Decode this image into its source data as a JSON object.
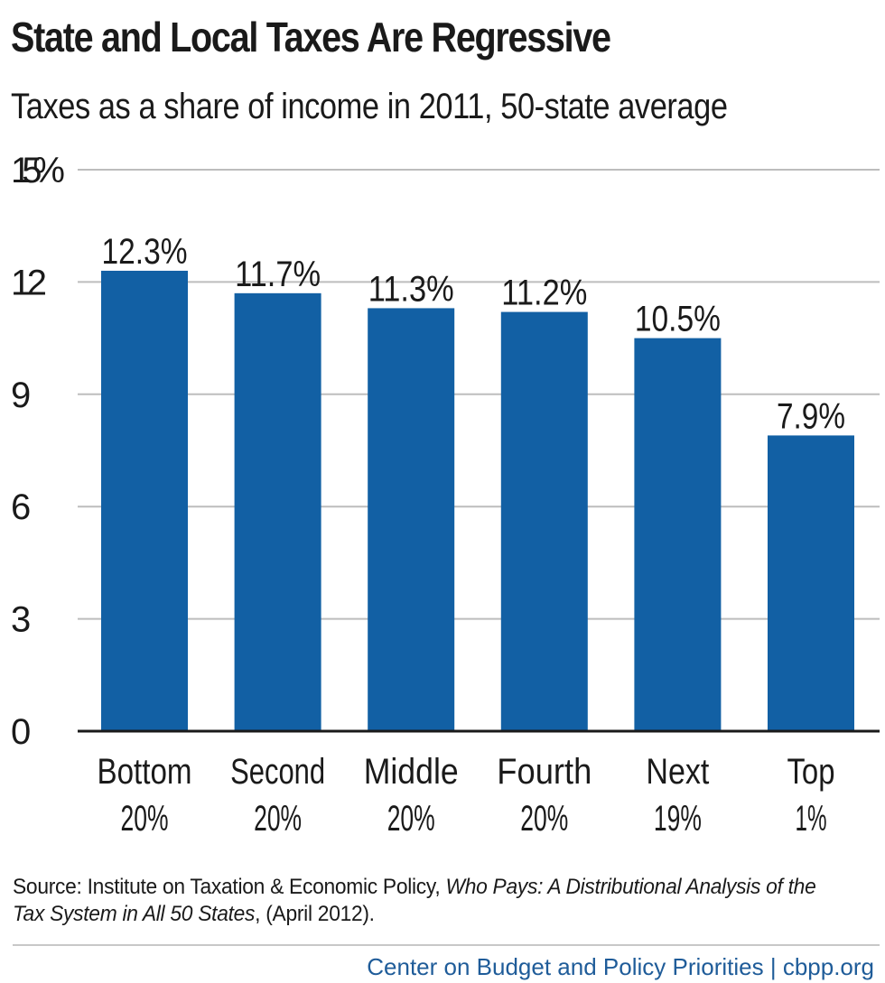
{
  "chart_data": {
    "type": "bar",
    "title": "State and Local Taxes Are Regressive",
    "subtitle": "Taxes as a share of income in 2011, 50-state average",
    "categories": [
      [
        "Bottom",
        "20%"
      ],
      [
        "Second",
        "20%"
      ],
      [
        "Middle",
        "20%"
      ],
      [
        "Fourth",
        "20%"
      ],
      [
        "Next",
        "19%"
      ],
      [
        "Top",
        "1%"
      ]
    ],
    "values": [
      12.3,
      11.7,
      11.3,
      11.2,
      10.5,
      7.9
    ],
    "data_labels": [
      "12.3%",
      "11.7%",
      "11.3%",
      "11.2%",
      "10.5%",
      "7.9%"
    ],
    "y_ticks": [
      0,
      3,
      6,
      9,
      12,
      15
    ],
    "y_tick_labels": [
      "0",
      "3",
      "6",
      "9",
      "12",
      "15%"
    ],
    "ylim": [
      0,
      15
    ],
    "grid": true,
    "bar_color": "#1260a4"
  },
  "source": {
    "prefix": "Source: Institute on Taxation & Economic Policy, ",
    "work": "Who Pays: A Distributional Analysis of the Tax System in All 50 States",
    "suffix": ", (April 2012)."
  },
  "credit": "Center on Budget and Policy Priorities | cbpp.org"
}
